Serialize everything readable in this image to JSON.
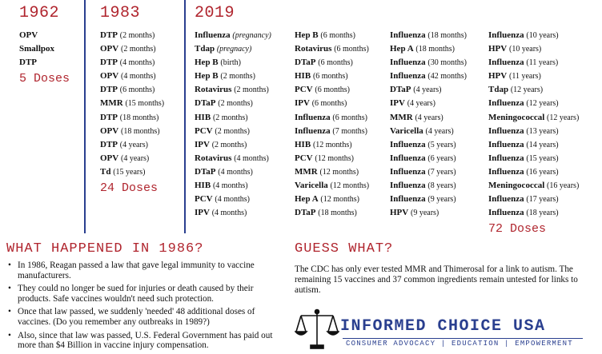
{
  "columns": [
    {
      "year": "1962",
      "items": [
        {
          "name": "OPV",
          "age": ""
        },
        {
          "name": "Smallpox",
          "age": ""
        },
        {
          "name": "DTP",
          "age": ""
        }
      ],
      "doses": "5 Doses"
    },
    {
      "year": "1983",
      "items": [
        {
          "name": "DTP",
          "age": "(2 months)"
        },
        {
          "name": "OPV",
          "age": "(2 months)"
        },
        {
          "name": "DTP",
          "age": "(4 months)"
        },
        {
          "name": "OPV",
          "age": "(4 months)"
        },
        {
          "name": "DTP",
          "age": "(6 months)"
        },
        {
          "name": "MMR",
          "age": "(15 months)"
        },
        {
          "name": "DTP",
          "age": "(18 months)"
        },
        {
          "name": "OPV",
          "age": "(18 months)"
        },
        {
          "name": "DTP",
          "age": "(4 years)"
        },
        {
          "name": "OPV",
          "age": "(4 years)"
        },
        {
          "name": "Td",
          "age": "(15 years)"
        }
      ],
      "doses": "24 Doses"
    },
    {
      "year": "2019",
      "items": [
        {
          "name": "Influenza",
          "age": "(pregnancy)",
          "italic": true
        },
        {
          "name": "Tdap",
          "age": "(pregnacy)",
          "italic": true
        },
        {
          "name": "Hep B",
          "age": "(birth)"
        },
        {
          "name": "Hep B",
          "age": "(2 months)"
        },
        {
          "name": "Rotavirus",
          "age": "(2 months)"
        },
        {
          "name": "DTaP",
          "age": "(2 months)"
        },
        {
          "name": "HIB",
          "age": "(2 months)"
        },
        {
          "name": "PCV",
          "age": "(2 months)"
        },
        {
          "name": "IPV",
          "age": "(2 months)"
        },
        {
          "name": "Rotavirus",
          "age": "(4 months)"
        },
        {
          "name": "DTaP",
          "age": "(4 months)"
        },
        {
          "name": "HIB",
          "age": "(4 months)"
        },
        {
          "name": "PCV",
          "age": "(4 months)"
        },
        {
          "name": "IPV",
          "age": "(4 months)"
        }
      ]
    },
    {
      "items": [
        {
          "name": "Hep B",
          "age": "(6 months)"
        },
        {
          "name": "Rotavirus",
          "age": "(6 months)"
        },
        {
          "name": "DTaP",
          "age": "(6 months)"
        },
        {
          "name": "HIB",
          "age": "(6 months)"
        },
        {
          "name": "PCV",
          "age": "(6 months)"
        },
        {
          "name": "IPV",
          "age": "(6 months)"
        },
        {
          "name": "Influenza",
          "age": "(6 months)"
        },
        {
          "name": "Influenza",
          "age": "(7 months)"
        },
        {
          "name": "HIB",
          "age": "(12 months)"
        },
        {
          "name": "PCV",
          "age": "(12 months)"
        },
        {
          "name": "MMR",
          "age": "(12 months)"
        },
        {
          "name": "Varicella",
          "age": "(12 months)"
        },
        {
          "name": "Hep A",
          "age": "(12 months)"
        },
        {
          "name": "DTaP",
          "age": "(18 months)"
        }
      ]
    },
    {
      "items": [
        {
          "name": "Influenza",
          "age": "(18 months)"
        },
        {
          "name": "Hep A",
          "age": "(18 months)"
        },
        {
          "name": "Influenza",
          "age": "(30 months)"
        },
        {
          "name": "Influenza",
          "age": "(42 months)"
        },
        {
          "name": "DTaP",
          "age": "(4 years)"
        },
        {
          "name": "IPV",
          "age": "(4 years)"
        },
        {
          "name": "MMR",
          "age": "(4 years)"
        },
        {
          "name": "Varicella",
          "age": "(4 years)"
        },
        {
          "name": "Influenza",
          "age": "(5 years)"
        },
        {
          "name": "Influenza",
          "age": "(6 years)"
        },
        {
          "name": "Influenza",
          "age": "(7 years)"
        },
        {
          "name": "Influenza",
          "age": "(8 years)"
        },
        {
          "name": "Influenza",
          "age": "(9 years)"
        },
        {
          "name": "HPV",
          "age": "(9 years)"
        }
      ]
    },
    {
      "items": [
        {
          "name": "Influenza",
          "age": "(10 years)"
        },
        {
          "name": "HPV",
          "age": "(10 years)"
        },
        {
          "name": "Influenza",
          "age": "(11 years)"
        },
        {
          "name": "HPV",
          "age": "(11 years)"
        },
        {
          "name": "Tdap",
          "age": "(12 years)"
        },
        {
          "name": "Influenza",
          "age": "(12 years)"
        },
        {
          "name": "Meningococcal",
          "age": "(12 years)"
        },
        {
          "name": "Influenza",
          "age": "(13 years)"
        },
        {
          "name": "Influenza",
          "age": "(14 years)"
        },
        {
          "name": "Influenza",
          "age": "(15 years)"
        },
        {
          "name": "Influenza",
          "age": "(16 years)"
        },
        {
          "name": "Meningococcal",
          "age": "(16 years)"
        },
        {
          "name": "Influenza",
          "age": "(17 years)"
        },
        {
          "name": "Influenza",
          "age": "(18 years)"
        }
      ],
      "doses": "72 Doses"
    }
  ],
  "happened": {
    "title": "WHAT HAPPENED IN 1986?",
    "bullets": [
      "In 1986, Reagan passed a law that gave legal immunity to vaccine manufacturers.",
      "They could no longer be sued for injuries or death caused by their products. Safe vaccines wouldn't need such protection.",
      "Once that law passed, we suddenly 'needed' 48 additional doses of vaccines. (Do you remember any outbreaks in 1989?)",
      "Also, since that law was passed, U.S. Federal Government has paid out more than $4 Billion in vaccine injury compensation."
    ]
  },
  "guess": {
    "title": "GUESS WHAT?",
    "text": "The CDC has only ever tested MMR and Thimerosal for a link to autism. The remaining 15 vaccines and 37 common ingredients remain untested for links to autism."
  },
  "logo": {
    "name": "INFORMED CHOICE USA",
    "tagline": "CONSUMER ADVOCACY | EDUCATION | EMPOWERMENT",
    "icon": "scales-of-justice-icon",
    "color": "#2a3f8f"
  },
  "colors": {
    "accent": "#b0252e",
    "divider": "#2a3f8f"
  }
}
